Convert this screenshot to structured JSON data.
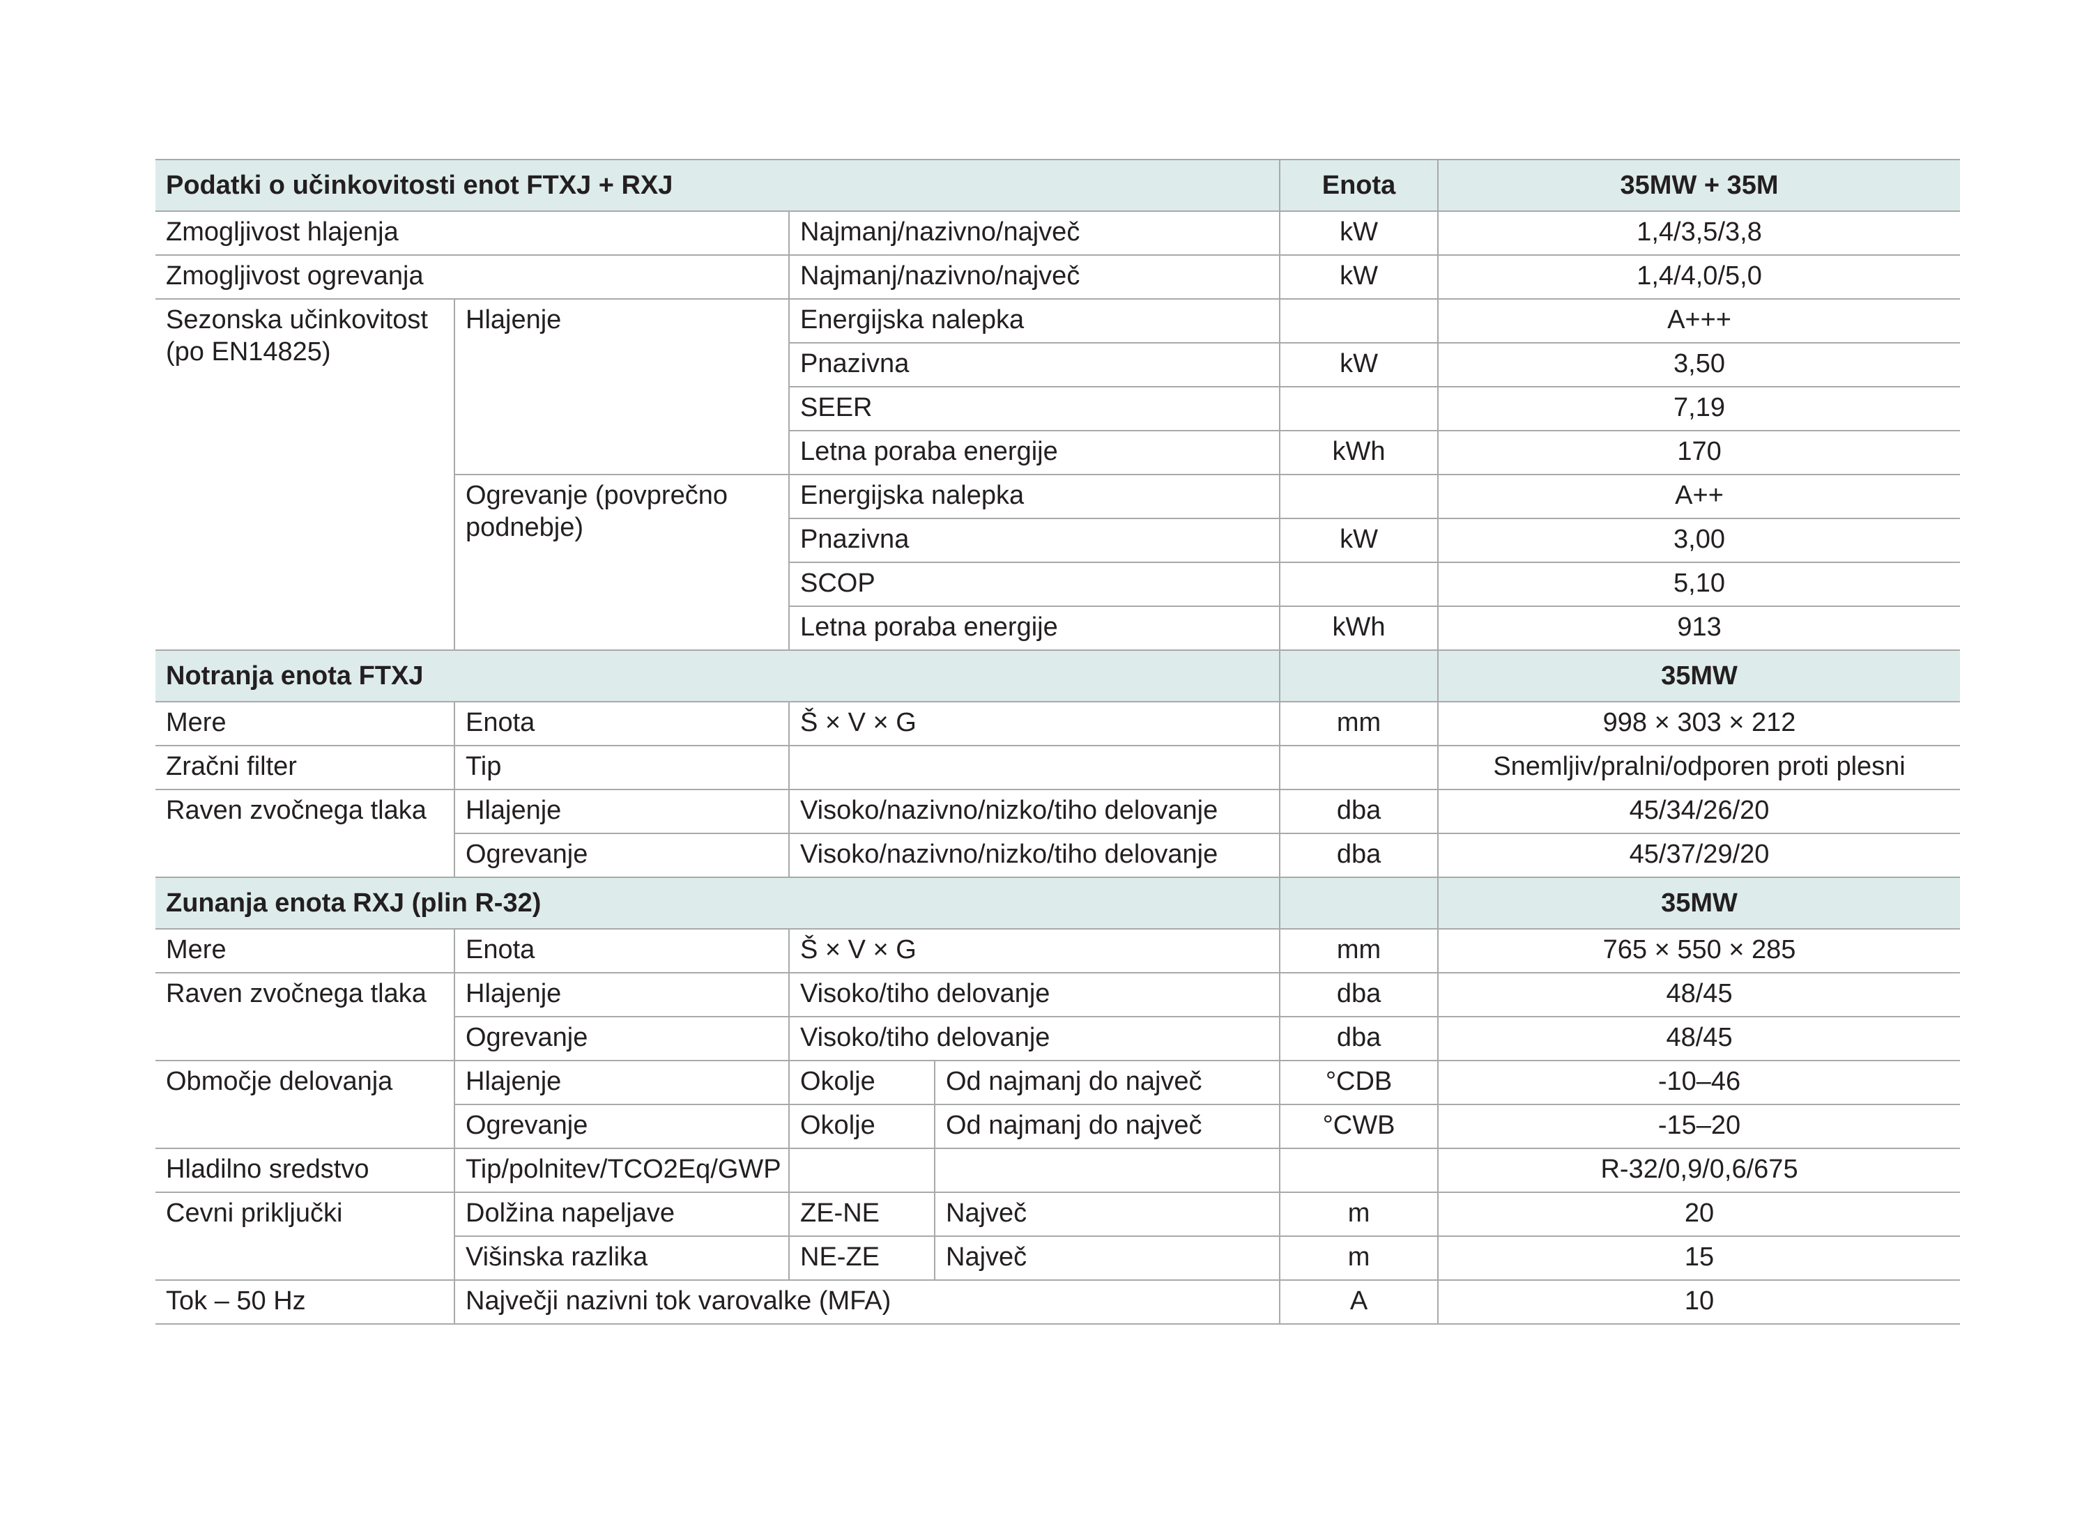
{
  "table": {
    "sections": [
      {
        "header": [
          "Podatki o učinkovitosti enot FTXJ + RXJ",
          "Enota",
          "35MW + 35M"
        ],
        "rows": [
          [
            "Zmogljivost hlajenja",
            "Najmanj/nazivno/največ",
            "kW",
            "1,4/3,5/3,8"
          ],
          [
            "Zmogljivost ogrevanja",
            "Najmanj/nazivno/največ",
            "kW",
            "1,4/4,0/5,0"
          ],
          [
            "Sezonska učinkovitost (po EN14825)",
            "Hlajenje",
            "Energijska nalepka",
            "A+++"
          ],
          [
            "Pnazivna",
            "kW",
            "3,50"
          ],
          [
            "SEER",
            "7,19"
          ],
          [
            "Letna poraba energije",
            "kWh",
            "170"
          ],
          [
            "Ogrevanje (povprečno podnebje)",
            "Energijska nalepka",
            "A++"
          ],
          [
            "Pnazivna",
            "kW",
            "3,00"
          ],
          [
            "SCOP",
            "5,10"
          ],
          [
            "Letna poraba energije",
            "kWh",
            "913"
          ]
        ]
      },
      {
        "header": [
          "Notranja enota FTXJ",
          "35MW"
        ],
        "rows": [
          [
            "Mere",
            "Enota",
            "Š × V × G",
            "mm",
            "998 × 303 × 212"
          ],
          [
            "Zračni filter",
            "Tip",
            "Snemljiv/pralni/odporen proti plesni"
          ],
          [
            "Raven zvočnega tlaka",
            "Hlajenje",
            "Visoko/nazivno/nizko/tiho delovanje",
            "dba",
            "45/34/26/20"
          ],
          [
            "Ogrevanje",
            "Visoko/nazivno/nizko/tiho delovanje",
            "dba",
            "45/37/29/20"
          ]
        ]
      },
      {
        "header": [
          "Zunanja enota RXJ (plin R-32)",
          "35MW"
        ],
        "rows": [
          [
            "Mere",
            "Enota",
            "Š × V × G",
            "mm",
            "765 × 550 × 285"
          ],
          [
            "Raven zvočnega tlaka",
            "Hlajenje",
            "Visoko/tiho delovanje",
            "dba",
            "48/45"
          ],
          [
            "Ogrevanje",
            "Visoko/tiho delovanje",
            "dba",
            "48/45"
          ],
          [
            "Območje delovanja",
            "Hlajenje",
            "Okolje",
            "Od najmanj do največ",
            "°CDB",
            "-10–46"
          ],
          [
            "Ogrevanje",
            "Okolje",
            "Od najmanj do največ",
            "°CWB",
            "-15–20"
          ],
          [
            "Hladilno sredstvo",
            "Tip/polnitev/TCO2Eq/GWP",
            "R-32/0,9/0,6/675"
          ],
          [
            "Cevni priključki",
            "Dolžina napeljave",
            "ZE-NE",
            "Največ",
            "m",
            "20"
          ],
          [
            "Višinska razlika",
            "NE-ZE",
            "Največ",
            "m",
            "15"
          ],
          [
            "Tok – 50 Hz",
            "Največji nazivni tok varovalke (MFA)",
            "A",
            "10"
          ]
        ]
      }
    ]
  }
}
